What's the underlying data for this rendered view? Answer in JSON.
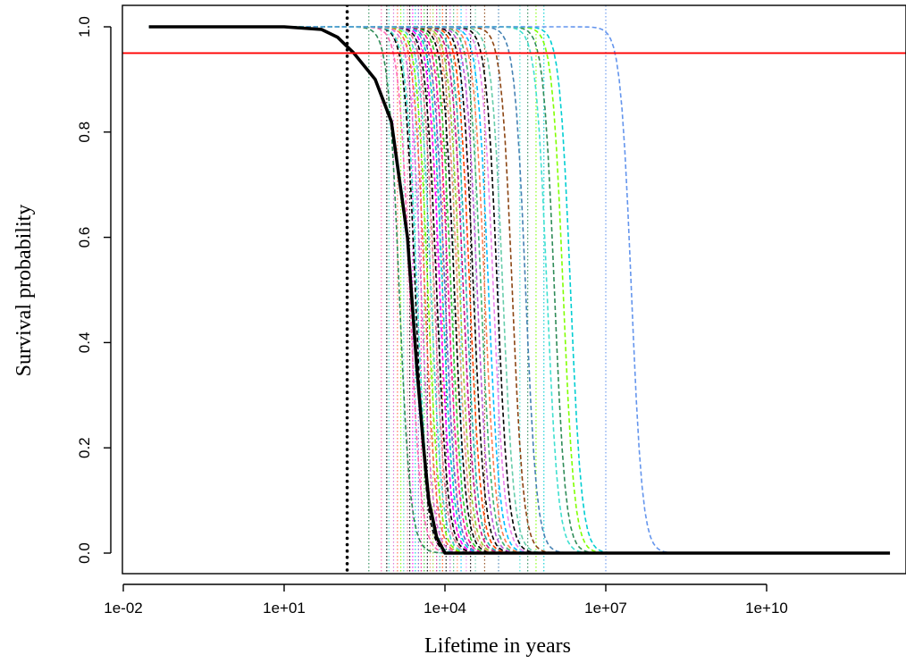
{
  "chart_data": {
    "type": "line",
    "xlabel": "Lifetime in years",
    "ylabel": "Survival probability",
    "x_scale": "log10",
    "xlim": [
      0.01,
      3000000000000.0
    ],
    "ylim": [
      0,
      1
    ],
    "x_ticks": [
      0.01,
      10,
      10000,
      10000000,
      10000000000
    ],
    "x_tick_labels": [
      "1e-02",
      "1e+01",
      "1e+04",
      "1e+07",
      "1e+10"
    ],
    "y_ticks": [
      0,
      0.2,
      0.4,
      0.6,
      0.8,
      1
    ],
    "y_tick_labels": [
      "0.0",
      "0.2",
      "0.4",
      "0.6",
      "0.8",
      "1.0"
    ],
    "grid": false,
    "legend": "none",
    "reference_line": {
      "y": 0.95,
      "color": "#ff0000"
    },
    "main_curve": {
      "color": "#000000",
      "style": "solid",
      "x_range": [
        0.03,
        2000000000000.0
      ],
      "x": [
        0.03,
        10,
        50,
        100,
        200,
        500,
        1000,
        2000,
        3000,
        4000,
        5000,
        7000,
        10000,
        2000000000000.0
      ],
      "y": [
        1.0,
        1.0,
        0.995,
        0.98,
        0.95,
        0.9,
        0.82,
        0.6,
        0.35,
        0.2,
        0.1,
        0.03,
        0.0,
        0.0
      ],
      "threshold_x": 150,
      "threshold_style": "dotted"
    },
    "series": [
      {
        "color": "#2e8b57",
        "median": 1400,
        "threshold": 380
      },
      {
        "color": "#ff69b4",
        "median": 2200,
        "threshold": 650
      },
      {
        "color": "#000000",
        "median": 2800,
        "threshold": 820
      },
      {
        "color": "#40e0d0",
        "median": 3000,
        "threshold": 900
      },
      {
        "color": "#da70d6",
        "median": 3600,
        "threshold": 1100
      },
      {
        "color": "#ff6347",
        "median": 4200,
        "threshold": 1300
      },
      {
        "color": "#7cfc00",
        "median": 4800,
        "threshold": 1500
      },
      {
        "color": "#48d1cc",
        "median": 5500,
        "threshold": 1700
      },
      {
        "color": "#db7093",
        "median": 6300,
        "threshold": 2000
      },
      {
        "color": "#000000",
        "median": 7000,
        "threshold": 2200
      },
      {
        "color": "#ff00ff",
        "median": 8000,
        "threshold": 2500
      },
      {
        "color": "#00ced1",
        "median": 9000,
        "threshold": 2800
      },
      {
        "color": "#6a5acd",
        "median": 10000,
        "threshold": 3200
      },
      {
        "color": "#ff1493",
        "median": 11500,
        "threshold": 3600
      },
      {
        "color": "#32cd32",
        "median": 13000,
        "threshold": 4100
      },
      {
        "color": "#000000",
        "median": 15000,
        "threshold": 4700
      },
      {
        "color": "#e9967a",
        "median": 17000,
        "threshold": 5300
      },
      {
        "color": "#9acd32",
        "median": 19000,
        "threshold": 6000
      },
      {
        "color": "#c71585",
        "median": 22000,
        "threshold": 7000
      },
      {
        "color": "#20b2aa",
        "median": 25000,
        "threshold": 8000
      },
      {
        "color": "#ff4500",
        "median": 29000,
        "threshold": 9000
      },
      {
        "color": "#000000",
        "median": 34000,
        "threshold": 10500
      },
      {
        "color": "#ba55d3",
        "median": 40000,
        "threshold": 12500
      },
      {
        "color": "#3cb371",
        "median": 47000,
        "threshold": 14500
      },
      {
        "color": "#ff7f50",
        "median": 55000,
        "threshold": 17000
      },
      {
        "color": "#00bfff",
        "median": 65000,
        "threshold": 20000
      },
      {
        "color": "#ee82ee",
        "median": 80000,
        "threshold": 25000
      },
      {
        "color": "#000000",
        "median": 95000,
        "threshold": 30000
      },
      {
        "color": "#66cdaa",
        "median": 120000,
        "threshold": 37000
      },
      {
        "color": "#8b4513",
        "median": 180000,
        "threshold": 55000
      },
      {
        "color": "#4682b4",
        "median": 320000,
        "threshold": 100000
      },
      {
        "color": "#40e0d0",
        "median": 800000,
        "threshold": 250000
      },
      {
        "color": "#2e8b57",
        "median": 1100000,
        "threshold": 350000
      },
      {
        "color": "#7fff00",
        "median": 1600000,
        "threshold": 500000
      },
      {
        "color": "#00ced1",
        "median": 2200000,
        "threshold": 700000
      },
      {
        "color": "#6495ed",
        "median": 30000000,
        "threshold": 10000000
      }
    ]
  }
}
